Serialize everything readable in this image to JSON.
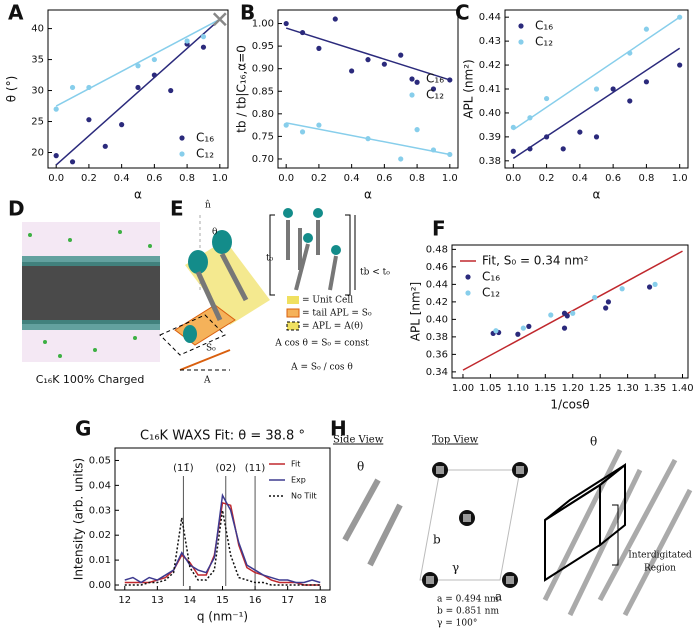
{
  "chart_data": [
    {
      "type": "scatter",
      "xlabel": "α",
      "ylabel": "θ (°)",
      "legend": "lower right",
      "xlim": [
        -0.05,
        1.05
      ],
      "ylim": [
        17.5,
        43
      ],
      "xticks": [
        {
          "value": 0,
          "label": "0.0"
        },
        0.2,
        0.4,
        0.6,
        0.8,
        {
          "value": 1,
          "label": "1.0"
        }
      ],
      "yticks": [
        20,
        25,
        30,
        35,
        40
      ],
      "series": [
        {
          "style": "line",
          "color": "#2b2a7c",
          "x": [
            0,
            1
          ],
          "values": [
            18,
            41.5
          ]
        },
        {
          "style": "line",
          "color": "#87ceeb",
          "x": [
            0,
            1
          ],
          "values": [
            27.5,
            41.5
          ]
        },
        {
          "name": "C₁₆",
          "style": "points",
          "color": "#2b2a7c",
          "x": [
            0,
            0.1,
            0.2,
            0.3,
            0.4,
            0.5,
            0.6,
            0.7,
            0.8,
            0.9
          ],
          "values": [
            19.5,
            18.5,
            25.3,
            21,
            24.5,
            30.5,
            32.5,
            30,
            37.5,
            37
          ]
        },
        {
          "name": "C₁₂",
          "style": "points",
          "color": "#87ceeb",
          "x": [
            0,
            0.1,
            0.2,
            0.5,
            0.6,
            0.8,
            0.9
          ],
          "values": [
            27,
            30.5,
            30.5,
            34,
            35,
            38,
            38.7
          ]
        },
        {
          "style": "cross",
          "color": "#888888",
          "x": [
            1
          ],
          "values": [
            41.5
          ]
        }
      ]
    },
    {
      "type": "scatter",
      "xlabel": "α",
      "ylabel": "tb / tb|C₁₆,α=0",
      "legend": "center right",
      "xlim": [
        -0.05,
        1.05
      ],
      "ylim": [
        0.68,
        1.03
      ],
      "xticks": [
        {
          "value": 0,
          "label": "0.0"
        },
        0.2,
        0.4,
        0.6,
        0.8,
        {
          "value": 1,
          "label": "1.0"
        }
      ],
      "yticks": [
        {
          "value": 0.7,
          "label": "0.70"
        },
        0.75,
        {
          "value": 0.8,
          "label": "0.80"
        },
        0.85,
        {
          "value": 0.9,
          "label": "0.90"
        },
        0.95,
        {
          "value": 1,
          "label": "1.00"
        }
      ],
      "series": [
        {
          "style": "line",
          "color": "#2b2a7c",
          "x": [
            0,
            1
          ],
          "values": [
            0.99,
            0.875
          ]
        },
        {
          "style": "line",
          "color": "#87ceeb",
          "x": [
            0,
            1
          ],
          "values": [
            0.78,
            0.71
          ]
        },
        {
          "name": "C₁₆",
          "style": "points",
          "color": "#2b2a7c",
          "x": [
            0,
            0.1,
            0.2,
            0.3,
            0.4,
            0.5,
            0.6,
            0.7,
            0.8,
            0.9,
            1
          ],
          "values": [
            1.0,
            0.98,
            0.945,
            1.01,
            0.895,
            0.92,
            0.91,
            0.93,
            0.87,
            0.855,
            0.875
          ]
        },
        {
          "name": "C₁₂",
          "style": "points",
          "color": "#87ceeb",
          "x": [
            0,
            0.1,
            0.2,
            0.5,
            0.7,
            0.8,
            0.9,
            1
          ],
          "values": [
            0.775,
            0.76,
            0.775,
            0.745,
            0.7,
            0.765,
            0.72,
            0.71
          ]
        }
      ]
    },
    {
      "type": "scatter",
      "xlabel": "α",
      "ylabel": "APL (nm²)",
      "legend": "upper left",
      "xlim": [
        -0.05,
        1.05
      ],
      "ylim": [
        0.377,
        0.443
      ],
      "xticks": [
        {
          "value": 0,
          "label": "0.0"
        },
        0.2,
        0.4,
        0.6,
        0.8,
        {
          "value": 1,
          "label": "1.0"
        }
      ],
      "yticks": [
        0.38,
        0.39,
        {
          "value": 0.4,
          "label": "0.40"
        },
        0.41,
        0.42,
        0.43,
        0.44
      ],
      "series": [
        {
          "style": "line",
          "color": "#2b2a7c",
          "x": [
            0,
            1
          ],
          "values": [
            0.381,
            0.427
          ]
        },
        {
          "style": "line",
          "color": "#87ceeb",
          "x": [
            0,
            1
          ],
          "values": [
            0.393,
            0.44
          ]
        },
        {
          "name": "C₁₆",
          "style": "points",
          "color": "#2b2a7c",
          "x": [
            0,
            0.1,
            0.2,
            0.3,
            0.4,
            0.5,
            0.6,
            0.7,
            0.8,
            1
          ],
          "values": [
            0.384,
            0.385,
            0.39,
            0.385,
            0.392,
            0.39,
            0.41,
            0.405,
            0.413,
            0.42
          ]
        },
        {
          "name": "C₁₂",
          "style": "points",
          "color": "#87ceeb",
          "x": [
            0,
            0.1,
            0.2,
            0.5,
            0.7,
            0.8,
            1
          ],
          "values": [
            0.394,
            0.398,
            0.406,
            0.41,
            0.425,
            0.435,
            0.44
          ]
        }
      ]
    },
    {
      "type": "scatter",
      "xlabel": "1/cosθ",
      "ylabel": "APL [nm²]",
      "legend": "upper left",
      "xlim": [
        0.98,
        1.41
      ],
      "ylim": [
        0.333,
        0.485
      ],
      "xticks": [
        {
          "value": 1,
          "label": "1.00"
        },
        1.05,
        {
          "value": 1.1,
          "label": "1.10"
        },
        1.15,
        {
          "value": 1.2,
          "label": "1.20"
        },
        1.25,
        {
          "value": 1.3,
          "label": "1.30"
        },
        1.35,
        {
          "value": 1.4,
          "label": "1.40"
        }
      ],
      "yticks": [
        0.34,
        0.36,
        0.38,
        {
          "value": 0.4,
          "label": "0.40"
        },
        0.42,
        0.44,
        0.46,
        0.48
      ],
      "series": [
        {
          "name": "Fit, S₀ = 0.34 nm²",
          "style": "line",
          "color": "#c0282d",
          "x": [
            1.0,
            1.4
          ],
          "values": [
            0.342,
            0.478
          ]
        },
        {
          "name": "C₁₆",
          "style": "points",
          "color": "#2b2a7c",
          "x": [
            1.055,
            1.065,
            1.1,
            1.12,
            1.185,
            1.19,
            1.185,
            1.26,
            1.265,
            1.34
          ],
          "values": [
            0.384,
            0.385,
            0.383,
            0.392,
            0.407,
            0.404,
            0.39,
            0.413,
            0.42,
            0.437
          ]
        },
        {
          "name": "C₁₂",
          "style": "points",
          "color": "#87ceeb",
          "x": [
            1.06,
            1.11,
            1.16,
            1.2,
            1.24,
            1.29,
            1.35
          ],
          "values": [
            0.387,
            0.39,
            0.405,
            0.407,
            0.425,
            0.435,
            0.44
          ]
        }
      ]
    },
    {
      "type": "scatter",
      "title": "C₁₆K WAXS Fit: θ = 38.8 °",
      "xlabel": "q (nm⁻¹)",
      "ylabel": "Intensity (arb. units)",
      "legend": "upper right",
      "xlim": [
        11.7,
        18.3
      ],
      "ylim": [
        -0.002,
        0.055
      ],
      "xticks": [
        12,
        13,
        14,
        15,
        16,
        17,
        18
      ],
      "yticks": [
        {
          "value": 0,
          "label": "0.00"
        },
        0.01,
        0.02,
        0.03,
        0.04,
        0.05
      ],
      "annotations": [
        {
          "text": "(11̄)",
          "x": 13.8
        },
        {
          "text": "(02)",
          "x": 15.1
        },
        {
          "text": "(11)",
          "x": 16.0
        }
      ],
      "series": [
        {
          "name": "Fit",
          "style": "line",
          "color": "#c0282d",
          "x": [
            12,
            12.25,
            12.5,
            12.75,
            13,
            13.25,
            13.5,
            13.75,
            14,
            14.25,
            14.5,
            14.75,
            15,
            15.25,
            15.5,
            15.75,
            16,
            16.25,
            16.5,
            16.75,
            17,
            17.25,
            17.5,
            17.75,
            18
          ],
          "values": [
            0.001,
            0.001,
            0.001,
            0.001,
            0.002,
            0.003,
            0.006,
            0.012,
            0.009,
            0.004,
            0.004,
            0.012,
            0.033,
            0.032,
            0.016,
            0.007,
            0.005,
            0.004,
            0.002,
            0.001,
            0.001,
            0.001,
            0.0,
            0.0,
            0.0
          ]
        },
        {
          "name": "Exp",
          "style": "line",
          "color": "#3d3a8f",
          "x": [
            12,
            12.25,
            12.5,
            12.75,
            13,
            13.25,
            13.5,
            13.75,
            14,
            14.25,
            14.5,
            14.75,
            15,
            15.25,
            15.5,
            15.75,
            16,
            16.25,
            16.5,
            16.75,
            17,
            17.25,
            17.5,
            17.75,
            18
          ],
          "values": [
            0.002,
            0.003,
            0.001,
            0.003,
            0.002,
            0.004,
            0.006,
            0.013,
            0.008,
            0.006,
            0.005,
            0.011,
            0.036,
            0.03,
            0.017,
            0.008,
            0.006,
            0.004,
            0.003,
            0.002,
            0.002,
            0.001,
            0.001,
            0.002,
            0.001
          ]
        },
        {
          "name": "No Tilt",
          "style": "dotted",
          "color": "#111111",
          "x": [
            12,
            12.25,
            12.5,
            12.75,
            13,
            13.25,
            13.5,
            13.75,
            14,
            14.25,
            14.5,
            14.75,
            15,
            15.25,
            15.5,
            15.75,
            16,
            16.25,
            16.5,
            16.75,
            17,
            17.25,
            17.5,
            17.75,
            18
          ],
          "values": [
            0.0,
            0.0,
            0.0,
            0.001,
            0.001,
            0.002,
            0.005,
            0.027,
            0.007,
            0.002,
            0.002,
            0.006,
            0.03,
            0.012,
            0.003,
            0.002,
            0.001,
            0.001,
            0.0,
            0.0,
            0.0,
            0.0,
            0.0,
            0.0,
            0.0
          ]
        }
      ]
    }
  ],
  "diagrams": {
    "panel_labels": [
      "A",
      "B",
      "C",
      "D",
      "E",
      "F",
      "G",
      "H"
    ],
    "d_caption": "C₁₆K 100% Charged",
    "e_texts": [
      "n̂",
      "θ",
      "t₀",
      "tb < t₀",
      "= Unit Cell",
      "= tail APL = S₀",
      "= APL = A(θ)",
      "A cos θ = S₀ = const",
      "A = S₀ / cos θ",
      "S₀",
      "A"
    ],
    "h_texts": [
      "Side View",
      "Top View",
      "θ",
      "θ",
      "b",
      "γ",
      "a"
    ],
    "h_region": [
      "Interdigitated",
      "Region"
    ],
    "h_params": [
      "a = 0.494 nm",
      "b = 0.851 nm",
      "γ = 100°"
    ]
  }
}
